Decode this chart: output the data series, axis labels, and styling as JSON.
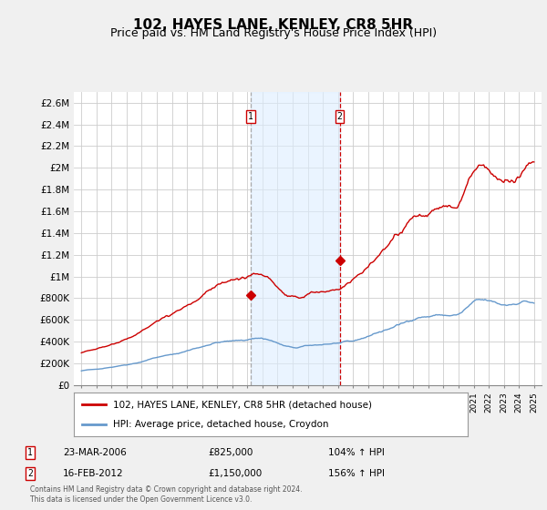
{
  "title": "102, HAYES LANE, KENLEY, CR8 5HR",
  "subtitle": "Price paid vs. HM Land Registry's House Price Index (HPI)",
  "title_fontsize": 11,
  "subtitle_fontsize": 9,
  "ylim": [
    0,
    2700000
  ],
  "yticks": [
    0,
    200000,
    400000,
    600000,
    800000,
    1000000,
    1200000,
    1400000,
    1600000,
    1800000,
    2000000,
    2200000,
    2400000,
    2600000
  ],
  "ytick_labels": [
    "£0",
    "£200K",
    "£400K",
    "£600K",
    "£800K",
    "£1M",
    "£1.2M",
    "£1.4M",
    "£1.6M",
    "£1.8M",
    "£2M",
    "£2.2M",
    "£2.4M",
    "£2.6M"
  ],
  "background_color": "#f0f0f0",
  "plot_bg_color": "#ffffff",
  "grid_color": "#cccccc",
  "sale1_date": 2006.22,
  "sale1_price": 825000,
  "sale1_label": "1",
  "sale1_date_str": "23-MAR-2006",
  "sale1_price_str": "£825,000",
  "sale1_hpi": "104% ↑ HPI",
  "sale2_date": 2012.12,
  "sale2_price": 1150000,
  "sale2_label": "2",
  "sale2_date_str": "16-FEB-2012",
  "sale2_price_str": "£1,150,000",
  "sale2_hpi": "156% ↑ HPI",
  "red_line_color": "#cc0000",
  "blue_line_color": "#6699cc",
  "shade_color": "#ddeeff",
  "sale1_dash_color": "#aaaaaa",
  "sale2_dash_color": "#cc0000",
  "legend_label_red": "102, HAYES LANE, KENLEY, CR8 5HR (detached house)",
  "legend_label_blue": "HPI: Average price, detached house, Croydon",
  "footer": "Contains HM Land Registry data © Crown copyright and database right 2024.\nThis data is licensed under the Open Government Licence v3.0."
}
